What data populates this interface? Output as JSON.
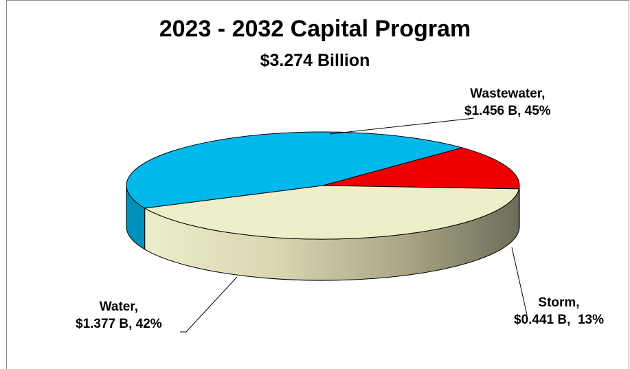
{
  "chart_data": {
    "type": "pie",
    "title": "2023 - 2032 Capital Program",
    "subtitle": "$3.274 Billion",
    "legend": "none",
    "slices": [
      {
        "name": "Wastewater",
        "value": 1.456,
        "percent": 45,
        "color": "#00B8EC",
        "label_line1": "Wastewater,",
        "label_line2": "$1.456 B, 45%"
      },
      {
        "name": "Storm",
        "value": 0.441,
        "percent": 13,
        "color": "#EE0000",
        "label_line1": "Storm,",
        "label_line2": "$0.441 B,  13%"
      },
      {
        "name": "Water",
        "value": 1.377,
        "percent": 42,
        "color": "#EEEEC8",
        "label_line1": "Water,",
        "label_line2": "$1.377 B, 42%"
      }
    ]
  }
}
